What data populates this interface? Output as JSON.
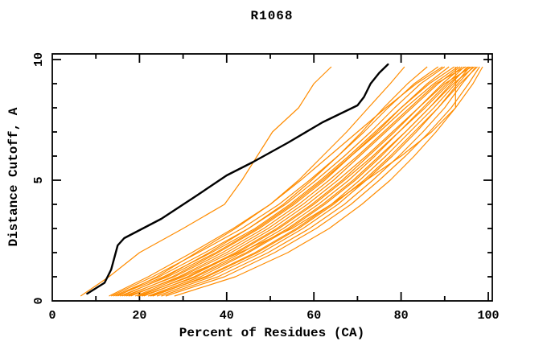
{
  "title": "R1068",
  "chart_data": {
    "type": "line",
    "title": "R1068",
    "xlabel": "Percent of Residues (CA)",
    "ylabel": "Distance Cutoff, A",
    "xlim": [
      0,
      101
    ],
    "ylim": [
      0,
      10.25
    ],
    "grid": false,
    "legend": "none",
    "xticks": {
      "labeled": [
        0,
        20,
        40,
        60,
        80,
        100
      ],
      "minor": [
        10,
        30,
        50,
        70,
        90
      ]
    },
    "yticks": {
      "labeled": [
        0,
        5,
        10
      ],
      "minor": [
        1,
        2,
        3,
        4,
        6,
        7,
        8,
        9
      ]
    },
    "colors": {
      "target": "#000000",
      "models": "#ff8c00",
      "background": "#ffffff",
      "frame": "#000000"
    },
    "target_series": {
      "name": "target-curve",
      "color": "#000000",
      "points": [
        [
          8,
          0.3
        ],
        [
          12,
          0.75
        ],
        [
          13.5,
          1.3
        ],
        [
          15,
          2.3
        ],
        [
          16.5,
          2.6
        ],
        [
          25,
          3.4
        ],
        [
          33,
          4.35
        ],
        [
          40,
          5.2
        ],
        [
          46,
          5.75
        ],
        [
          54,
          6.55
        ],
        [
          62,
          7.4
        ],
        [
          70,
          8.1
        ],
        [
          71.5,
          8.45
        ],
        [
          73,
          9.0
        ],
        [
          75,
          9.45
        ],
        [
          77,
          9.8
        ]
      ]
    },
    "model_series": {
      "name_prefix": "model-curve",
      "color": "#ff8c00",
      "cutoff_grid": [
        0.2,
        1,
        2,
        3,
        4,
        5,
        6,
        7,
        8,
        9,
        9.7
      ],
      "percent_x": [
        [
          6.5,
          13,
          20,
          30,
          39.5,
          43.5,
          47,
          50.5,
          56.5,
          60,
          64
        ],
        [
          15,
          24,
          33,
          42,
          50,
          56.5,
          62,
          67.5,
          72.5,
          77.5,
          80.8
        ],
        [
          16,
          26,
          36,
          45,
          53,
          59.5,
          65.5,
          71,
          76,
          81.5,
          86
        ],
        [
          13.5,
          23,
          33.5,
          43.5,
          52,
          59,
          65.5,
          71.5,
          77,
          83,
          88.5
        ],
        [
          14,
          24.5,
          35,
          45,
          53.5,
          60.5,
          67,
          73,
          78.5,
          84.5,
          90
        ],
        [
          17,
          27.5,
          38,
          47.5,
          55.5,
          62.5,
          68.5,
          74.5,
          80,
          86,
          91
        ],
        [
          19,
          30,
          43,
          55,
          64,
          72,
          80,
          87,
          92.5,
          92.5,
          92.5
        ],
        [
          15.5,
          26.5,
          37.5,
          47,
          55,
          62,
          68.5,
          75,
          81,
          87.5,
          93
        ],
        [
          18,
          29,
          40,
          49.5,
          57.5,
          64.5,
          70.5,
          76.5,
          82.5,
          88.5,
          93.5
        ],
        [
          20,
          31,
          42,
          51.5,
          59.5,
          66.5,
          72.5,
          78.5,
          84,
          89.5,
          94
        ],
        [
          21,
          32.5,
          43.5,
          53,
          61,
          68,
          74,
          79.5,
          85,
          90.5,
          94.5
        ],
        [
          16.5,
          28,
          39,
          48.5,
          56.5,
          63.5,
          70,
          76,
          82,
          88,
          94.8
        ],
        [
          22,
          34,
          45,
          54.5,
          62.5,
          69.5,
          75.5,
          81,
          86.5,
          91.5,
          95.2
        ],
        [
          19.5,
          31.5,
          42.5,
          52,
          60,
          67,
          73.5,
          79.5,
          85.5,
          91,
          95.5
        ],
        [
          23,
          35,
          46.5,
          56,
          64,
          70.5,
          76.5,
          82,
          87.5,
          92.5,
          95.8
        ],
        [
          17.5,
          29.5,
          41,
          50.5,
          58.5,
          65.5,
          72,
          78,
          84,
          90,
          96.2
        ],
        [
          24,
          36.5,
          48,
          57.5,
          65.5,
          72,
          78,
          83.5,
          88.5,
          93,
          96.5
        ],
        [
          20.5,
          33,
          44.5,
          54,
          62,
          69,
          75,
          81,
          86.5,
          92,
          96.8
        ],
        [
          25,
          38,
          49.5,
          59,
          67,
          73.5,
          79.5,
          85,
          90,
          94,
          97.2
        ],
        [
          22.5,
          35.5,
          47,
          56.5,
          64.5,
          71.5,
          77.5,
          83,
          88.5,
          93.5,
          97.5
        ],
        [
          26,
          39.5,
          51,
          60.5,
          68.5,
          75,
          81,
          86.5,
          91.5,
          95.5,
          98
        ],
        [
          28,
          42,
          54,
          63.5,
          71,
          77.5,
          83,
          88,
          92.5,
          96.5,
          98.7
        ],
        [
          14.5,
          25.5,
          36.5,
          46.5,
          54.5,
          61.5,
          68,
          74,
          80,
          86.5,
          92.2
        ],
        [
          13,
          22,
          32,
          41.5,
          50,
          57,
          63.5,
          70,
          76.5,
          83.5,
          89.5
        ]
      ]
    }
  }
}
